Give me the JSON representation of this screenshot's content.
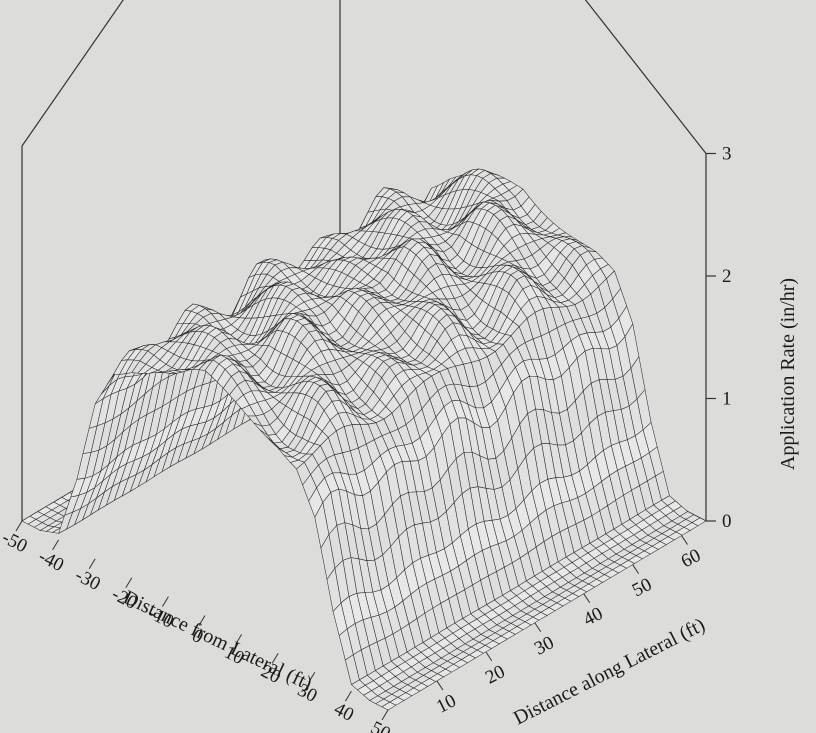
{
  "chart_data": {
    "type": "surface",
    "title": "",
    "x_axis": {
      "label": "Distance from Lateral (ft)",
      "ticks": [
        "-50",
        "-40",
        "-30",
        "-20",
        "-10",
        "0",
        "10",
        "20",
        "30",
        "40",
        "50"
      ],
      "range": [
        -50,
        50
      ]
    },
    "y_axis": {
      "label": "Distance along Lateral (ft)",
      "ticks": [
        "10",
        "20",
        "30",
        "40",
        "50",
        "60"
      ],
      "range": [
        0,
        65
      ]
    },
    "z_axis": {
      "label": "Application Rate (in/hr)",
      "ticks": [
        "0",
        "1",
        "2",
        "3"
      ],
      "range": [
        0,
        3
      ]
    },
    "profile": {
      "description_values": "application rate across lateral distance, roughly flat along lateral",
      "x": [
        -50,
        -45,
        -40,
        -35,
        -30,
        -25,
        -20,
        -15,
        -10,
        -5,
        0,
        5,
        10,
        15,
        20,
        25,
        30,
        35,
        40,
        45,
        50
      ],
      "z": [
        0.0,
        0.0,
        0.05,
        0.55,
        1.25,
        1.6,
        1.7,
        1.75,
        1.8,
        1.85,
        1.9,
        1.85,
        1.8,
        1.75,
        1.7,
        1.6,
        1.25,
        0.55,
        0.05,
        0.0,
        0.0
      ]
    },
    "grid": false,
    "colors": {
      "surface_fill": "#efefef",
      "mesh": "#2b2b2b",
      "background": "#dcdcda",
      "axes": "#333333"
    }
  }
}
